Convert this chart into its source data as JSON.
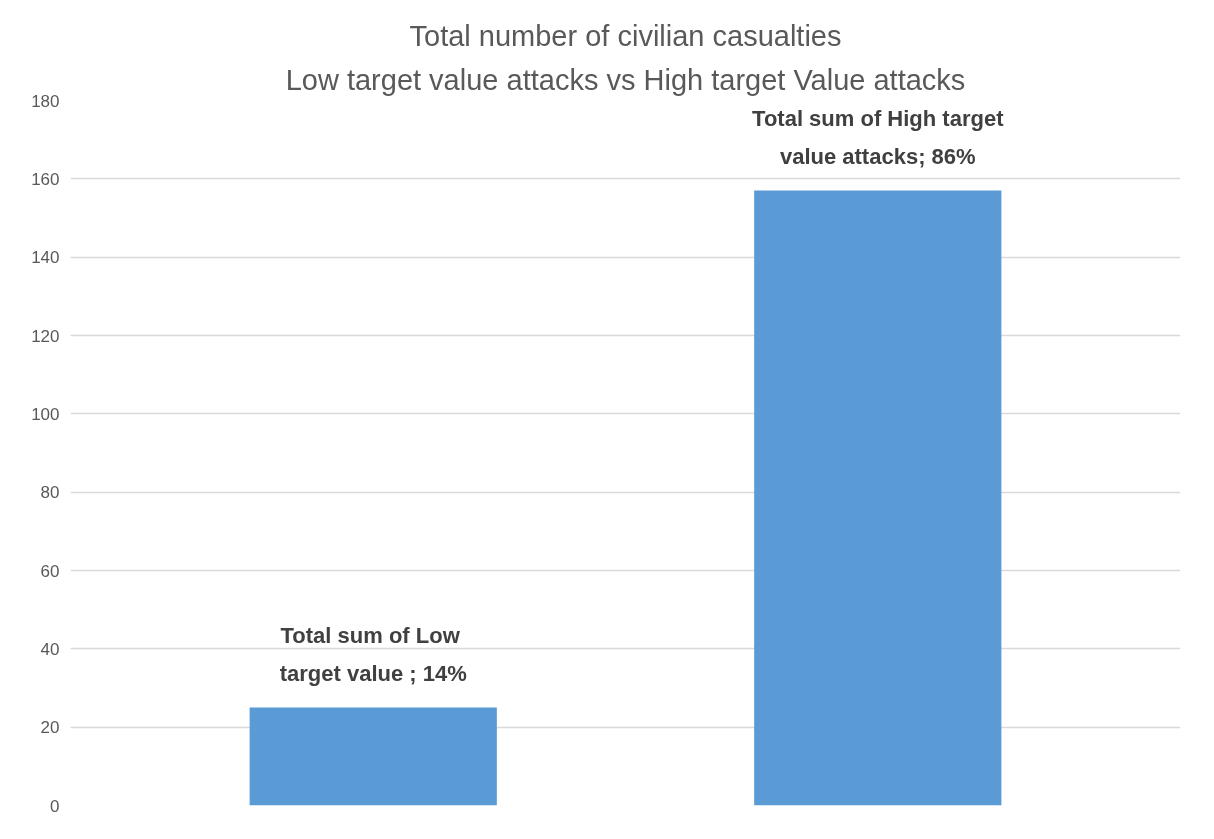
{
  "chart_data": {
    "type": "bar",
    "title": "Total number of civilian casualties",
    "subtitle": "Low target value attacks vs High target Value attacks",
    "categories": [
      null,
      null
    ],
    "values": [
      25,
      157
    ],
    "color": "#5b9bd5",
    "annotations": [
      {
        "text": "Total sum of  Low target value ; 14%",
        "y": 25
      },
      {
        "text": "Total sum of High target value attacks; 86%",
        "y": 157
      }
    ],
    "ylim": [
      0,
      180
    ],
    "yticks": [
      0,
      20,
      40,
      60,
      80,
      100,
      120,
      140,
      160,
      180
    ],
    "grid": "y"
  }
}
